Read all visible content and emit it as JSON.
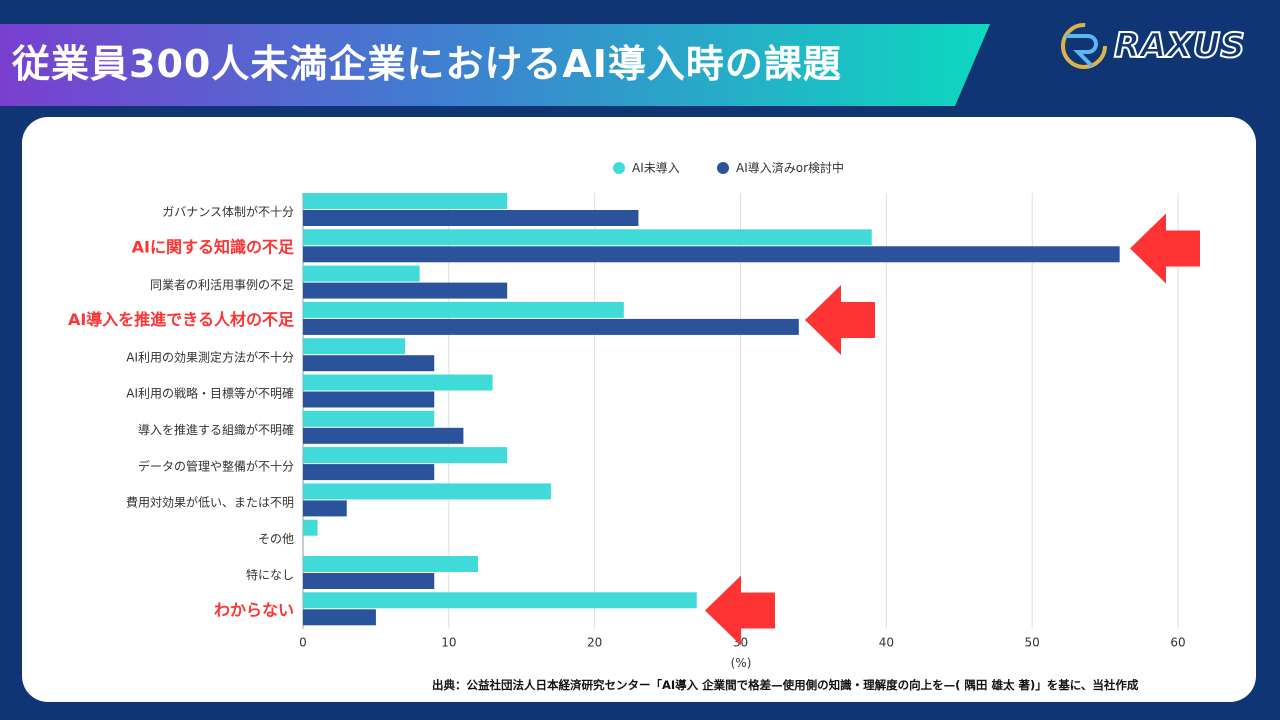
{
  "header": {
    "title": "従業員300人未満企業におけるAI導入時の課題",
    "logo_text": "RAXUS"
  },
  "source": "出典：公益社団法人日本経済研究センター「AI導入 企業間で格差—使用側の知識・理解度の向上を—( 隅田 雄太 著)」を基に、当社作成",
  "colors": {
    "series1": "#40dbd8",
    "series2": "#2a539c",
    "highlight": "#ff3333"
  },
  "chart_data": {
    "type": "bar",
    "orientation": "horizontal",
    "categories": [
      "ガバナンス体制が不十分",
      "AIに関する知識の不足",
      "同業者の利活用事例の不足",
      "AI導入を推進できる人材の不足",
      "AI利用の効果測定方法が不十分",
      "AI利用の戦略・目標等が不明確",
      "導入を推進する組織が不明確",
      "データの管理や整備が不十分",
      "費用対効果が低い、または不明",
      "その他",
      "特になし",
      "わからない"
    ],
    "highlighted": [
      1,
      3,
      11
    ],
    "series": [
      {
        "name": "AI未導入",
        "values": [
          14,
          39,
          8,
          22,
          7,
          13,
          9,
          14,
          17,
          1,
          12,
          27
        ]
      },
      {
        "name": "AI導入済みor検討中",
        "values": [
          23,
          56,
          14,
          34,
          9,
          9,
          11,
          9,
          3,
          0,
          9,
          5
        ]
      }
    ],
    "xlabel": "(%)",
    "xlim": [
      0,
      60
    ],
    "xticks": [
      0,
      10,
      20,
      30,
      40,
      50,
      60
    ],
    "grid": true,
    "legend": "top"
  }
}
